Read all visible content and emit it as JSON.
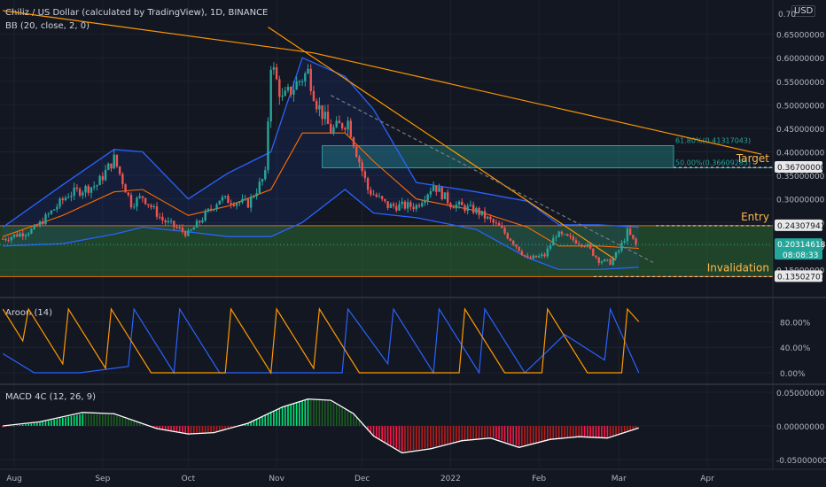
{
  "header": {
    "title": "Chiliz / US Dollar (calculated by TradingView), 1D, BINANCE",
    "bb_label": "BB (20, close, 2, 0)",
    "currency": "USD"
  },
  "colors": {
    "background": "#131722",
    "grid": "#1e222d",
    "up": "#26a69a",
    "down": "#ef5350",
    "bb_band": "#2962ff",
    "bb_basis": "#ff6d00",
    "trendline": "#ff9800",
    "zone": "#2e7d32",
    "target_zone": "#26a69a",
    "aroon_up": "#ff9800",
    "aroon_down": "#2962ff",
    "macd_line": "#ffffff",
    "hist_pos_strong": "#00e676",
    "hist_pos_weak": "#1b5e20",
    "hist_neg_strong": "#ff1744",
    "hist_neg_weak": "#b71c1c"
  },
  "chart_data": [
    {
      "type": "candlestick",
      "title": "Chiliz / US Dollar (calculated by TradingView), 1D, BINANCE",
      "ylim": [
        0.12,
        0.7
      ],
      "y_ticks": [
        0.15,
        0.2,
        0.25,
        0.3,
        0.35,
        0.4,
        0.45,
        0.5,
        0.55,
        0.6,
        0.65
      ],
      "y_tick_labels": [
        "0.15000000",
        "0.20000000",
        "0.25000000",
        "0.30000000",
        "0.35000000",
        "0.40000000",
        "0.45000000",
        "0.50000000",
        "0.55000000",
        "0.60000000",
        "0.65000000"
      ],
      "top_tick_label": "0.70",
      "anchors": {
        "x": [
          "2021-07-28",
          "2021-08-08",
          "2021-08-20",
          "2021-08-30",
          "2021-09-05",
          "2021-09-11",
          "2021-09-15",
          "2021-09-22",
          "2021-10-01",
          "2021-10-12",
          "2021-10-22",
          "2021-10-28",
          "2021-10-30",
          "2021-11-03",
          "2021-11-08",
          "2021-11-12",
          "2021-11-15",
          "2021-11-20",
          "2021-11-26",
          "2021-11-29",
          "2021-12-03",
          "2021-12-10",
          "2021-12-20",
          "2021-12-26",
          "2022-01-01",
          "2022-01-10",
          "2022-01-18",
          "2022-01-22",
          "2022-01-28",
          "2022-02-03",
          "2022-02-07",
          "2022-02-12",
          "2022-02-17",
          "2022-02-22",
          "2022-02-26",
          "2022-03-01",
          "2022-03-04",
          "2022-03-07"
        ],
        "close": [
          0.215,
          0.235,
          0.31,
          0.33,
          0.385,
          0.29,
          0.305,
          0.255,
          0.225,
          0.3,
          0.29,
          0.35,
          0.59,
          0.51,
          0.545,
          0.57,
          0.505,
          0.445,
          0.465,
          0.4,
          0.32,
          0.285,
          0.285,
          0.33,
          0.29,
          0.275,
          0.24,
          0.215,
          0.172,
          0.18,
          0.225,
          0.215,
          0.205,
          0.17,
          0.165,
          0.19,
          0.23,
          0.203
        ]
      },
      "bb_upper": {
        "x": [
          "2021-07-28",
          "2021-08-18",
          "2021-09-05",
          "2021-09-15",
          "2021-10-01",
          "2021-10-15",
          "2021-10-30",
          "2021-11-10",
          "2021-11-25",
          "2021-12-05",
          "2021-12-20",
          "2022-01-10",
          "2022-01-28",
          "2022-02-08",
          "2022-02-22",
          "2022-03-08"
        ],
        "y": [
          0.24,
          0.33,
          0.405,
          0.4,
          0.3,
          0.355,
          0.4,
          0.6,
          0.56,
          0.49,
          0.335,
          0.315,
          0.295,
          0.245,
          0.245,
          0.24
        ]
      },
      "bb_basis": {
        "x": [
          "2021-07-28",
          "2021-08-18",
          "2021-09-05",
          "2021-09-15",
          "2021-10-01",
          "2021-10-15",
          "2021-10-30",
          "2021-11-10",
          "2021-11-25",
          "2021-12-05",
          "2021-12-20",
          "2022-01-10",
          "2022-01-28",
          "2022-02-08",
          "2022-02-22",
          "2022-03-08"
        ],
        "y": [
          0.22,
          0.265,
          0.315,
          0.32,
          0.265,
          0.285,
          0.32,
          0.44,
          0.44,
          0.38,
          0.3,
          0.275,
          0.24,
          0.2,
          0.2,
          0.195
        ]
      },
      "bb_lower": {
        "x": [
          "2021-07-28",
          "2021-08-18",
          "2021-09-05",
          "2021-09-15",
          "2021-10-01",
          "2021-10-15",
          "2021-10-30",
          "2021-11-10",
          "2021-11-25",
          "2021-12-05",
          "2021-12-20",
          "2022-01-10",
          "2022-01-28",
          "2022-02-08",
          "2022-02-22",
          "2022-03-08"
        ],
        "y": [
          0.2,
          0.205,
          0.225,
          0.24,
          0.23,
          0.22,
          0.22,
          0.25,
          0.32,
          0.27,
          0.26,
          0.235,
          0.175,
          0.15,
          0.15,
          0.155
        ]
      },
      "trendlines": [
        {
          "x": [
            "2021-07-28",
            "2021-11-14",
            "2022-04-20"
          ],
          "y": [
            0.7,
            0.61,
            0.395
          ],
          "style": "solid"
        },
        {
          "x": [
            "2021-10-29",
            "2022-02-28"
          ],
          "y": [
            0.665,
            0.17
          ],
          "style": "solid"
        },
        {
          "x": [
            "2021-11-20",
            "2022-03-13"
          ],
          "y": [
            0.52,
            0.165
          ],
          "style": "dashed"
        }
      ],
      "zones": [
        {
          "y": [
            0.13502707,
            0.24307941
          ],
          "label": "Entry",
          "lower_label": "Invalidation"
        },
        {
          "y": [
            0.36609285,
            0.41317043
          ],
          "label": "Target",
          "fib_upper": "61.80%(0.41317043)",
          "fib_lower": "50.00%(0.36609285)"
        }
      ],
      "price_labels": {
        "target": "0.36700000",
        "entry": "0.24307941",
        "current": "0.20314618",
        "countdown": "08:08:33",
        "invalidation": "0.13502707"
      },
      "annotations": {
        "target": "Target",
        "entry": "Entry",
        "invalidation": "Invalidation"
      }
    },
    {
      "type": "line",
      "title": "Aroon (14)",
      "ylim": [
        0,
        100
      ],
      "y_tick_labels": [
        "80.00%",
        "40.00%",
        "0.00%"
      ],
      "y_ticks": [
        80,
        40,
        0
      ],
      "series": [
        {
          "name": "up",
          "x": [
            "2021-07-28",
            "2021-08-04",
            "2021-08-06",
            "2021-08-18",
            "2021-08-20",
            "2021-09-02",
            "2021-09-04",
            "2021-09-18",
            "2021-10-14",
            "2021-10-16",
            "2021-10-30",
            "2021-11-01",
            "2021-11-14",
            "2021-11-16",
            "2021-11-30",
            "2022-01-04",
            "2022-01-06",
            "2022-01-20",
            "2022-02-02",
            "2022-02-04",
            "2022-02-18",
            "2022-03-02",
            "2022-03-04",
            "2022-03-08"
          ],
          "y": [
            100,
            50,
            100,
            14,
            100,
            7,
            100,
            0,
            0,
            100,
            0,
            100,
            7,
            100,
            0,
            0,
            100,
            0,
            0,
            100,
            0,
            0,
            100,
            80
          ]
        },
        {
          "name": "down",
          "x": [
            "2021-07-28",
            "2021-08-08",
            "2021-08-10",
            "2021-08-24",
            "2021-09-10",
            "2021-09-12",
            "2021-09-26",
            "2021-09-28",
            "2021-10-12",
            "2021-11-24",
            "2021-11-26",
            "2021-12-10",
            "2021-12-12",
            "2021-12-26",
            "2021-12-28",
            "2022-01-11",
            "2022-01-13",
            "2022-01-27",
            "2022-02-10",
            "2022-02-24",
            "2022-02-26",
            "2022-03-08"
          ],
          "y": [
            30,
            0,
            0,
            0,
            10,
            100,
            0,
            100,
            0,
            0,
            100,
            14,
            100,
            0,
            100,
            0,
            100,
            0,
            60,
            20,
            100,
            0
          ]
        }
      ]
    },
    {
      "type": "bar",
      "title": "MACD 4C (12, 26, 9)",
      "ylim": [
        -0.06,
        0.06
      ],
      "y_ticks": [
        0.05,
        0,
        -0.05
      ],
      "y_tick_labels": [
        "0.05000000",
        "0.00000000",
        "-0.05000000"
      ],
      "macd_line": {
        "x": [
          "2021-07-28",
          "2021-08-10",
          "2021-08-25",
          "2021-09-05",
          "2021-09-20",
          "2021-10-01",
          "2021-10-10",
          "2021-10-22",
          "2021-11-03",
          "2021-11-12",
          "2021-11-20",
          "2021-11-28",
          "2021-12-05",
          "2021-12-15",
          "2021-12-25",
          "2022-01-05",
          "2022-01-15",
          "2022-01-25",
          "2022-02-05",
          "2022-02-15",
          "2022-02-25",
          "2022-03-08"
        ],
        "y": [
          0.0,
          0.006,
          0.02,
          0.018,
          -0.004,
          -0.012,
          -0.01,
          0.004,
          0.028,
          0.04,
          0.038,
          0.018,
          -0.015,
          -0.04,
          -0.034,
          -0.022,
          -0.018,
          -0.032,
          -0.02,
          -0.016,
          -0.018,
          -0.003
        ]
      },
      "histogram": {
        "x": [
          "2021-07-28",
          "2021-08-10",
          "2021-08-25",
          "2021-09-05",
          "2021-09-20",
          "2021-10-01",
          "2021-10-10",
          "2021-10-22",
          "2021-11-03",
          "2021-11-12",
          "2021-11-20",
          "2021-11-28",
          "2021-12-05",
          "2021-12-15",
          "2021-12-25",
          "2022-01-05",
          "2022-01-15",
          "2022-01-25",
          "2022-02-05",
          "2022-02-15",
          "2022-02-25",
          "2022-03-08"
        ],
        "y": [
          -0.002,
          0.005,
          0.018,
          0.016,
          -0.004,
          -0.012,
          -0.01,
          0.004,
          0.028,
          0.04,
          0.036,
          0.016,
          -0.015,
          -0.038,
          -0.032,
          -0.022,
          -0.016,
          -0.03,
          -0.02,
          -0.016,
          -0.017,
          -0.003
        ]
      }
    }
  ],
  "x_axis": {
    "dates": [
      "2021-08-01",
      "2021-09-01",
      "2021-10-01",
      "2021-11-01",
      "2021-12-01",
      "2022-01-01",
      "2022-02-01",
      "2022-03-01",
      "2022-04-01"
    ],
    "labels": [
      "Aug",
      "Sep",
      "Oct",
      "Nov",
      "Dec",
      "2022",
      "Feb",
      "Mar",
      "Apr"
    ],
    "range": [
      "2021-07-27",
      "2022-04-24"
    ]
  }
}
